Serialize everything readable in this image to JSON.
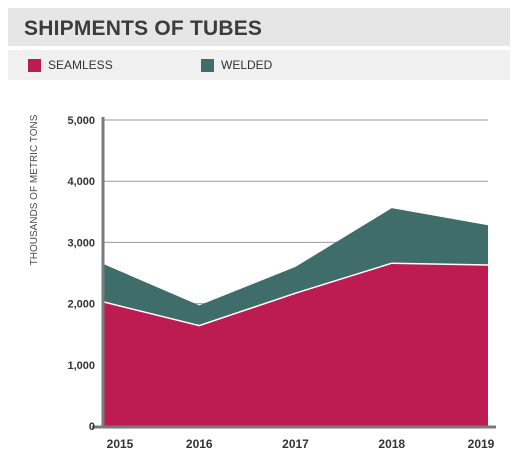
{
  "title": "SHIPMENTS OF TUBES",
  "colors": {
    "seamless": "#bc1c52",
    "welded": "#3f6e6a",
    "grid": "#9a9a9a",
    "axis": "#7a7a7a"
  },
  "chart_data": {
    "type": "area",
    "stacked": true,
    "x": [
      "2015",
      "2016",
      "2017",
      "2018",
      "2019"
    ],
    "series": [
      {
        "name": "SEAMLESS",
        "values": [
          2030,
          1640,
          2170,
          2660,
          2630
        ]
      },
      {
        "name": "WELDED",
        "values": [
          620,
          330,
          430,
          900,
          650
        ]
      }
    ],
    "ylabel": "THOUSANDS OF METRIC TONS",
    "ylim": [
      0,
      5000
    ],
    "yticks": [
      "0",
      "1,000",
      "2,000",
      "3,000",
      "4,000",
      "5,000"
    ],
    "ytick_values": [
      0,
      1000,
      2000,
      3000,
      4000,
      5000
    ],
    "grid": true,
    "legend": "top-left"
  }
}
